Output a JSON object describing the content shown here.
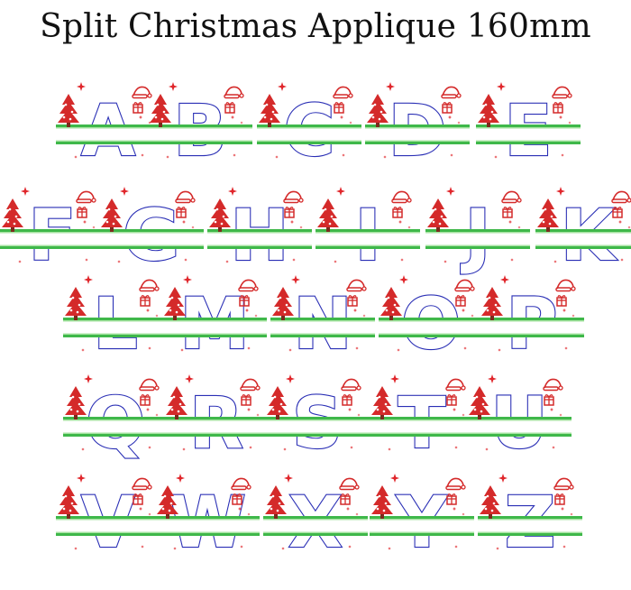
{
  "title": "Split Christmas Applique 160mm",
  "colors": {
    "letter_outline": "#2a2fb5",
    "split_bar": "#3fb84a",
    "split_bar_light": "#a6e3a1",
    "tree": "#d42a2a",
    "sparkle": "#e0262b",
    "hat": "#d42a2a",
    "gift": "#d42a2a"
  },
  "icons": [
    "christmas-tree-icon",
    "santa-hat-icon",
    "gift-icon",
    "star-sparkle-icon"
  ],
  "rows": [
    [
      "A",
      "B",
      "C",
      "D",
      "E"
    ],
    [
      "F",
      "G",
      "H",
      "I",
      "J",
      "K"
    ],
    [
      "L",
      "M",
      "N",
      "O",
      "P"
    ],
    [
      "Q",
      "R",
      "S",
      "T",
      "U"
    ],
    [
      "V",
      "W",
      "X",
      "Y",
      "Z"
    ]
  ]
}
